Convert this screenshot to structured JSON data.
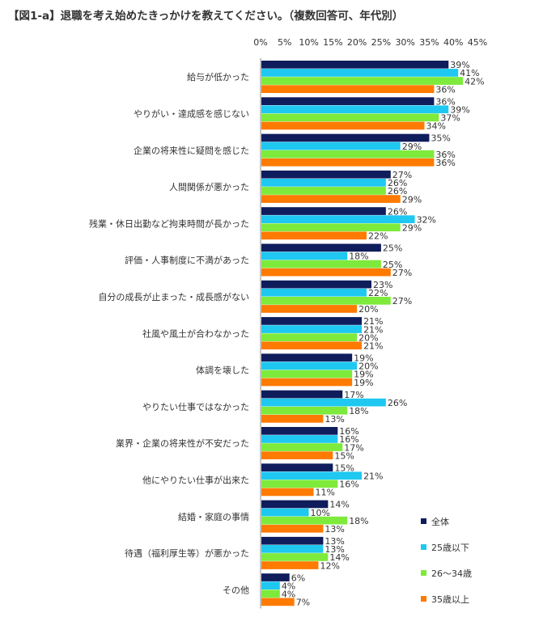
{
  "chart_data": {
    "type": "bar",
    "orientation": "horizontal",
    "title": "【図1-a】退職を考え始めたきっかけを教えてください。（複数回答可、年代別）",
    "xlim": [
      0,
      45
    ],
    "xticks": [
      0,
      5,
      10,
      15,
      20,
      25,
      30,
      35,
      40,
      45
    ],
    "tick_suffix": "%",
    "grid": false,
    "legend_position": "bottom-right",
    "categories": [
      "給与が低かった",
      "やりがい・達成感を感じない",
      "企業の将来性に疑問を感じた",
      "人間関係が悪かった",
      "残業・休日出勤など拘束時間が長かった",
      "評価・人事制度に不満があった",
      "自分の成長が止まった・成長感がない",
      "社風や風土が合わなかった",
      "体調を壊した",
      "やりたい仕事ではなかった",
      "業界・企業の将来性が不安だった",
      "他にやりたい仕事が出来た",
      "結婚・家庭の事情",
      "待遇（福利厚生等）が悪かった",
      "その他"
    ],
    "series": [
      {
        "name": "全体",
        "color": "#0f1d5c",
        "values": [
          39,
          36,
          35,
          27,
          26,
          25,
          23,
          21,
          19,
          17,
          16,
          15,
          14,
          13,
          6
        ]
      },
      {
        "name": "25歳以下",
        "color": "#1ec8f0",
        "values": [
          41,
          39,
          29,
          26,
          32,
          18,
          22,
          21,
          20,
          26,
          16,
          21,
          10,
          13,
          4
        ]
      },
      {
        "name": "26～34歳",
        "color": "#7eea3c",
        "values": [
          42,
          37,
          36,
          26,
          29,
          25,
          27,
          20,
          19,
          18,
          17,
          16,
          18,
          14,
          4
        ]
      },
      {
        "name": "35歳以上",
        "color": "#ff7a00",
        "values": [
          36,
          34,
          36,
          29,
          22,
          27,
          20,
          21,
          19,
          13,
          15,
          11,
          13,
          12,
          7
        ]
      }
    ]
  }
}
